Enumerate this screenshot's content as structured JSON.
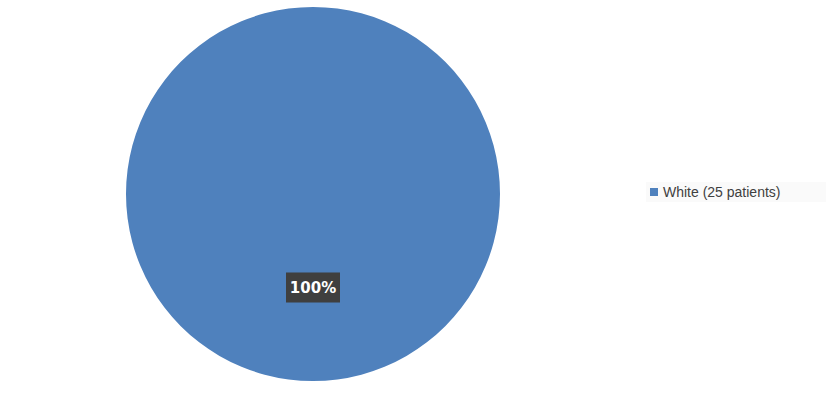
{
  "chart_data": {
    "type": "pie",
    "categories": [
      "White (25 patients)"
    ],
    "values": [
      100
    ],
    "value_labels": [
      "100%"
    ],
    "colors": [
      "#4f81bd"
    ],
    "data_labels": true,
    "legend": "right"
  }
}
